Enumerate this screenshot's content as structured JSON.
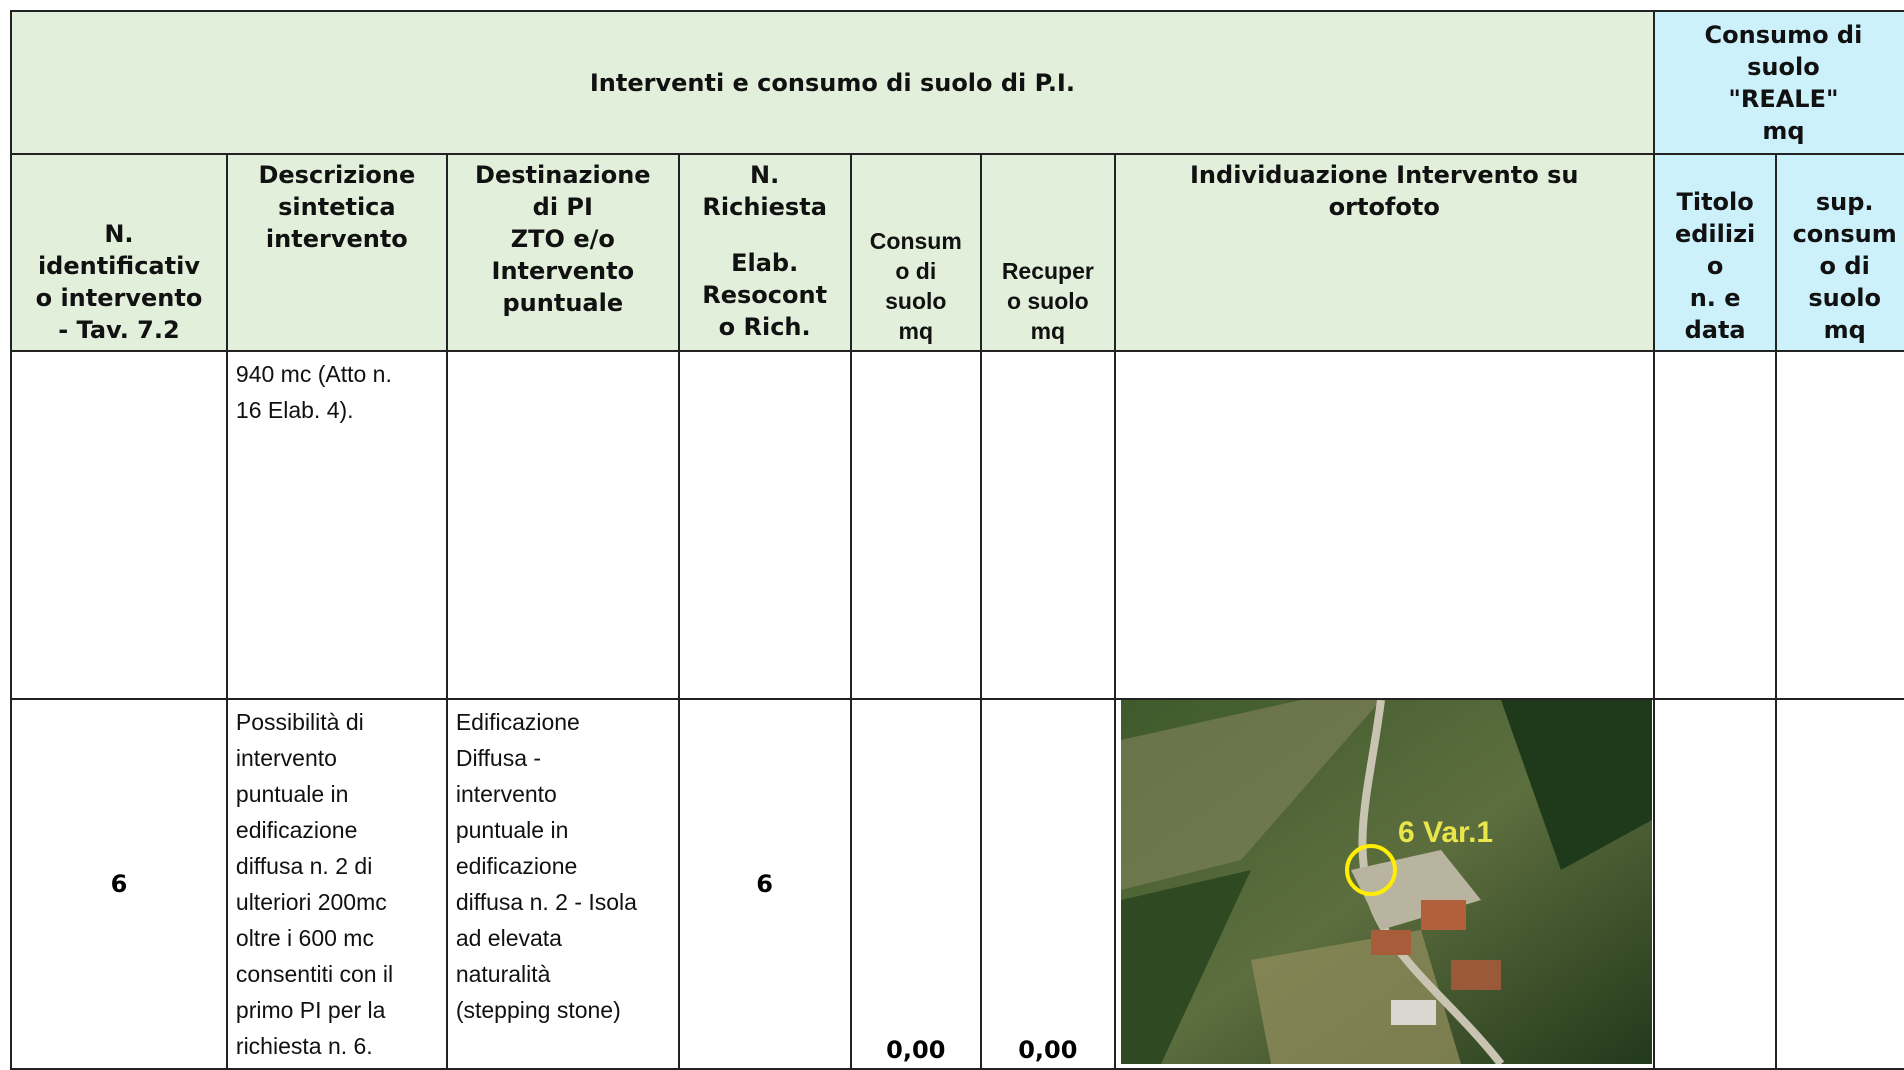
{
  "header": {
    "title": "Interventi e consumo di suolo di P.I.",
    "consumo_title": {
      "lines": [
        "Consumo di",
        "suolo",
        "\"REALE\"",
        "mq"
      ]
    }
  },
  "columns": [
    {
      "lines": [
        "N.",
        "identificativ",
        "o intervento",
        "- Tav. 7.2"
      ]
    },
    {
      "lines": [
        "Descrizione",
        "sintetica",
        "intervento"
      ]
    },
    {
      "lines": [
        "Destinazione",
        "di PI",
        "ZTO e/o",
        "Intervento",
        "puntuale"
      ]
    },
    {
      "lines": [
        "N.",
        "Richiesta",
        "",
        "Elab.",
        "Resocont",
        "o Rich."
      ]
    },
    {
      "lines": [
        "Consum",
        "o di",
        "suolo",
        "mq"
      ]
    },
    {
      "lines": [
        "Recuper",
        "o suolo",
        "mq"
      ]
    },
    {
      "lines": [
        "Individuazione Intervento su",
        "ortofoto"
      ]
    },
    {
      "lines": [
        "Titolo",
        "edilizi",
        "o",
        "n. e",
        "data"
      ]
    },
    {
      "lines": [
        "sup.",
        "consum",
        "o di",
        "suolo",
        "mq"
      ]
    }
  ],
  "rows": [
    {
      "descrizione": {
        "lines": [
          "940 mc (Atto n.",
          "16 Elab. 4)."
        ]
      }
    },
    {
      "id": "6",
      "descrizione": {
        "lines": [
          "Possibilità di",
          "intervento",
          "puntuale in",
          "edificazione",
          "diffusa n. 2 di",
          "ulteriori 200mc",
          "oltre i 600 mc",
          "consentiti con il",
          "primo PI per la",
          "richiesta n. 6."
        ]
      },
      "destinazione": {
        "lines": [
          "Edificazione",
          "Diffusa -",
          "intervento",
          "puntuale in",
          "edificazione",
          "diffusa n. 2 - Isola",
          "ad elevata",
          "naturalità",
          "(stepping stone)"
        ]
      },
      "richiesta": "6",
      "consumo": "0,00",
      "recupero": "0,00",
      "ortofoto_label": "6 Var.1"
    }
  ]
}
